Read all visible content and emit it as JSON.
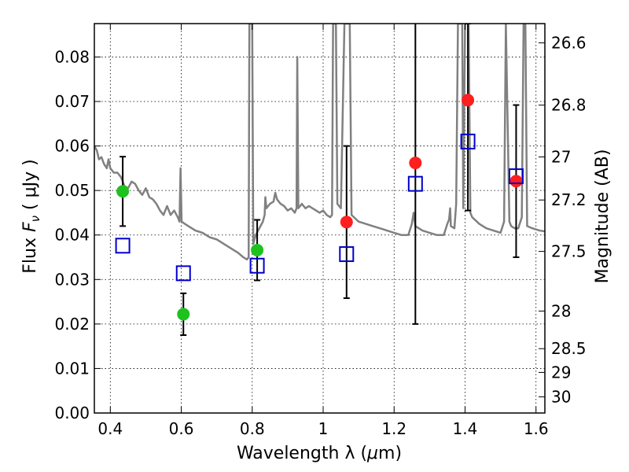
{
  "chart_data": {
    "type": "scatter",
    "xlabel_prefix": "Wavelength  λ (",
    "xlabel_unit_mu": "μ",
    "xlabel_unit_rest": "m)",
    "ylabel_prefix": "Flux  ",
    "ylabel_symbol": "F",
    "ylabel_sub": "ν",
    "ylabel_unit": " (  μJy )",
    "y2label": "Magnitude (AB)",
    "xlim": [
      0.355,
      1.625
    ],
    "ylim": [
      0.0,
      0.0875
    ],
    "x_ticks": [
      0.4,
      0.6,
      0.8,
      1.0,
      1.2,
      1.4,
      1.6
    ],
    "x_tick_labels": [
      "0.4",
      "0.6",
      "0.8",
      "1",
      "1.2",
      "1.4",
      "1.6"
    ],
    "y_ticks": [
      0.0,
      0.01,
      0.02,
      0.03,
      0.04,
      0.05,
      0.06,
      0.07,
      0.08
    ],
    "y_tick_labels": [
      "0.00",
      "0.01",
      "0.02",
      "0.03",
      "0.04",
      "0.05",
      "0.06",
      "0.07",
      "0.08"
    ],
    "y2_ticks": [
      {
        "mag": 26.6,
        "label": "26.6"
      },
      {
        "mag": 26.8,
        "label": "26.8"
      },
      {
        "mag": 27.0,
        "label": "27"
      },
      {
        "mag": 27.2,
        "label": "27.2"
      },
      {
        "mag": 27.5,
        "label": "27.5"
      },
      {
        "mag": 28.0,
        "label": "28"
      },
      {
        "mag": 28.5,
        "label": "28.5"
      },
      {
        "mag": 29.0,
        "label": "29"
      },
      {
        "mag": 30.0,
        "label": "30"
      }
    ],
    "grid": true,
    "colors": {
      "model": "#808080",
      "green": "#1ec21e",
      "red": "#ff1f1f",
      "square": "#0000cc",
      "errorbar": "#000000"
    },
    "series": [
      {
        "type": "line",
        "color": "#808080",
        "points": [
          [
            0.355,
            0.06
          ],
          [
            0.362,
            0.059
          ],
          [
            0.368,
            0.057
          ],
          [
            0.375,
            0.0575
          ],
          [
            0.382,
            0.056
          ],
          [
            0.39,
            0.055
          ],
          [
            0.395,
            0.057
          ],
          [
            0.4,
            0.055
          ],
          [
            0.41,
            0.054
          ],
          [
            0.42,
            0.054
          ],
          [
            0.43,
            0.053
          ],
          [
            0.44,
            0.051
          ],
          [
            0.45,
            0.0505
          ],
          [
            0.46,
            0.052
          ],
          [
            0.47,
            0.0515
          ],
          [
            0.48,
            0.05
          ],
          [
            0.49,
            0.049
          ],
          [
            0.5,
            0.0505
          ],
          [
            0.51,
            0.0485
          ],
          [
            0.52,
            0.048
          ],
          [
            0.53,
            0.047
          ],
          [
            0.54,
            0.0455
          ],
          [
            0.55,
            0.0445
          ],
          [
            0.56,
            0.0465
          ],
          [
            0.57,
            0.0445
          ],
          [
            0.58,
            0.0455
          ],
          [
            0.59,
            0.044
          ],
          [
            0.595,
            0.043
          ],
          [
            0.598,
            0.055
          ],
          [
            0.601,
            0.043
          ],
          [
            0.61,
            0.0425
          ],
          [
            0.62,
            0.042
          ],
          [
            0.64,
            0.041
          ],
          [
            0.66,
            0.0405
          ],
          [
            0.68,
            0.0395
          ],
          [
            0.7,
            0.039
          ],
          [
            0.72,
            0.038
          ],
          [
            0.74,
            0.037
          ],
          [
            0.76,
            0.036
          ],
          [
            0.775,
            0.035
          ],
          [
            0.785,
            0.0345
          ],
          [
            0.79,
            0.035
          ],
          [
            0.792,
            0.0875
          ],
          [
            0.8,
            0.0875
          ],
          [
            0.803,
            0.038
          ],
          [
            0.81,
            0.04
          ],
          [
            0.82,
            0.0415
          ],
          [
            0.83,
            0.043
          ],
          [
            0.835,
            0.0445
          ],
          [
            0.837,
            0.0485
          ],
          [
            0.84,
            0.046
          ],
          [
            0.85,
            0.047
          ],
          [
            0.86,
            0.0475
          ],
          [
            0.865,
            0.0495
          ],
          [
            0.87,
            0.048
          ],
          [
            0.88,
            0.047
          ],
          [
            0.89,
            0.0465
          ],
          [
            0.9,
            0.0455
          ],
          [
            0.91,
            0.046
          ],
          [
            0.92,
            0.045
          ],
          [
            0.925,
            0.046
          ],
          [
            0.927,
            0.08
          ],
          [
            0.93,
            0.046
          ],
          [
            0.94,
            0.047
          ],
          [
            0.95,
            0.046
          ],
          [
            0.96,
            0.0465
          ],
          [
            0.97,
            0.046
          ],
          [
            0.98,
            0.0455
          ],
          [
            0.99,
            0.045
          ],
          [
            1.0,
            0.0455
          ],
          [
            1.01,
            0.0445
          ],
          [
            1.02,
            0.044
          ],
          [
            1.025,
            0.0445
          ],
          [
            1.028,
            0.0875
          ],
          [
            1.036,
            0.0875
          ],
          [
            1.04,
            0.047
          ],
          [
            1.05,
            0.046
          ],
          [
            1.06,
            0.0875
          ],
          [
            1.075,
            0.0875
          ],
          [
            1.08,
            0.0445
          ],
          [
            1.1,
            0.043
          ],
          [
            1.12,
            0.0425
          ],
          [
            1.14,
            0.042
          ],
          [
            1.16,
            0.0415
          ],
          [
            1.18,
            0.041
          ],
          [
            1.2,
            0.0405
          ],
          [
            1.22,
            0.04
          ],
          [
            1.24,
            0.04
          ],
          [
            1.25,
            0.0425
          ],
          [
            1.255,
            0.045
          ],
          [
            1.26,
            0.042
          ],
          [
            1.28,
            0.041
          ],
          [
            1.3,
            0.0405
          ],
          [
            1.32,
            0.04
          ],
          [
            1.34,
            0.04
          ],
          [
            1.35,
            0.0425
          ],
          [
            1.355,
            0.0435
          ],
          [
            1.358,
            0.046
          ],
          [
            1.36,
            0.042
          ],
          [
            1.37,
            0.0415
          ],
          [
            1.375,
            0.047
          ],
          [
            1.38,
            0.0875
          ],
          [
            1.392,
            0.0875
          ],
          [
            1.395,
            0.046
          ],
          [
            1.4,
            0.0875
          ],
          [
            1.41,
            0.0875
          ],
          [
            1.415,
            0.045
          ],
          [
            1.42,
            0.044
          ],
          [
            1.44,
            0.0425
          ],
          [
            1.46,
            0.0415
          ],
          [
            1.48,
            0.041
          ],
          [
            1.5,
            0.0405
          ],
          [
            1.51,
            0.043
          ],
          [
            1.515,
            0.0875
          ],
          [
            1.525,
            0.043
          ],
          [
            1.53,
            0.042
          ],
          [
            1.54,
            0.0415
          ],
          [
            1.55,
            0.0415
          ],
          [
            1.56,
            0.044
          ],
          [
            1.565,
            0.0875
          ],
          [
            1.57,
            0.0875
          ],
          [
            1.575,
            0.042
          ],
          [
            1.59,
            0.0415
          ],
          [
            1.61,
            0.041
          ],
          [
            1.625,
            0.0408
          ]
        ]
      },
      {
        "type": "scatter",
        "marker": "circle",
        "color": "#1ec21e",
        "points": [
          {
            "x": 0.435,
            "y": 0.0498,
            "err_lo": 0.0078,
            "err_hi": 0.0078
          },
          {
            "x": 0.606,
            "y": 0.0222,
            "err_lo": 0.0047,
            "err_hi": 0.0047
          },
          {
            "x": 0.814,
            "y": 0.0366,
            "err_lo": 0.0068,
            "err_hi": 0.0068
          }
        ]
      },
      {
        "type": "scatter",
        "marker": "circle",
        "color": "#ff1f1f",
        "points": [
          {
            "x": 1.066,
            "y": 0.0429,
            "err_lo": 0.0171,
            "err_hi": 0.0171
          },
          {
            "x": 1.26,
            "y": 0.0562,
            "err_lo": 0.0362,
            "err_hi": 0.0395
          },
          {
            "x": 1.408,
            "y": 0.0703,
            "err_lo": 0.0248,
            "err_hi": 0.0172
          },
          {
            "x": 1.544,
            "y": 0.0521,
            "err_lo": 0.0171,
            "err_hi": 0.0171
          }
        ]
      },
      {
        "type": "scatter",
        "marker": "square-open",
        "color": "#0000cc",
        "points": [
          {
            "x": 0.435,
            "y": 0.0376
          },
          {
            "x": 0.606,
            "y": 0.0314
          },
          {
            "x": 0.814,
            "y": 0.0331
          },
          {
            "x": 1.066,
            "y": 0.0357
          },
          {
            "x": 1.26,
            "y": 0.0515
          },
          {
            "x": 1.408,
            "y": 0.061
          },
          {
            "x": 1.544,
            "y": 0.0532
          }
        ]
      }
    ]
  }
}
